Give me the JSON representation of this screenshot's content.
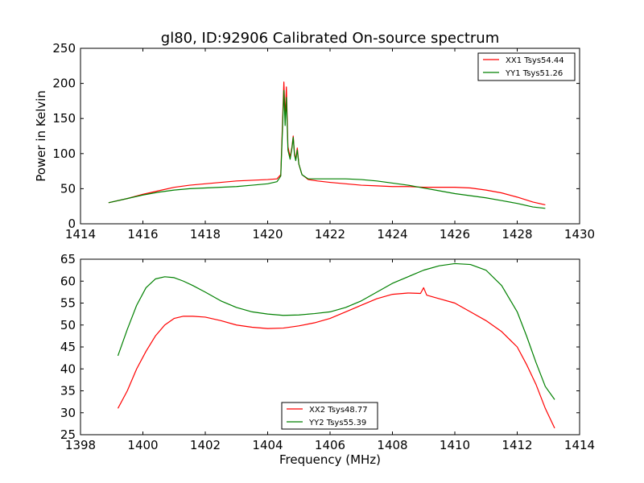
{
  "figure": {
    "title": "gl80, ID:92906 Calibrated On-source spectrum",
    "xlabel": "Frequency (MHz)",
    "colors": {
      "red": "#ff0000",
      "green": "#008000"
    }
  },
  "chart_data": [
    {
      "type": "line",
      "title": "gl80, ID:92906 Calibrated On-source spectrum",
      "xlabel": "",
      "ylabel": "Power in Kelvin",
      "xlim": [
        1414,
        1430
      ],
      "ylim": [
        0,
        250
      ],
      "xticks": [
        1414,
        1416,
        1418,
        1420,
        1422,
        1424,
        1426,
        1428,
        1430
      ],
      "yticks": [
        0,
        50,
        100,
        150,
        200,
        250
      ],
      "grid": false,
      "legend_position": "top-right",
      "series": [
        {
          "name": "XX1 Tsys54.44",
          "color": "#ff0000",
          "x": [
            1414.9,
            1415.5,
            1416.0,
            1416.5,
            1417.0,
            1417.5,
            1418.0,
            1418.5,
            1419.0,
            1419.5,
            1420.0,
            1420.3,
            1420.42,
            1420.48,
            1420.52,
            1420.56,
            1420.6,
            1420.65,
            1420.72,
            1420.78,
            1420.82,
            1420.86,
            1420.9,
            1420.95,
            1421.0,
            1421.1,
            1421.3,
            1421.6,
            1422.0,
            1422.5,
            1423.0,
            1423.5,
            1424.0,
            1424.5,
            1425.0,
            1425.5,
            1426.0,
            1426.5,
            1427.0,
            1427.5,
            1428.0,
            1428.5,
            1428.9
          ],
          "y": [
            30,
            36,
            42,
            47,
            52,
            55,
            57,
            59,
            61,
            62,
            63,
            64,
            70,
            150,
            202,
            150,
            195,
            110,
            95,
            110,
            125,
            100,
            92,
            108,
            85,
            70,
            63,
            61,
            59,
            57,
            55,
            54,
            53,
            53,
            52,
            52,
            52,
            51,
            48,
            44,
            38,
            31,
            27
          ]
        },
        {
          "name": "YY1 Tsys51.26",
          "color": "#008000",
          "x": [
            1414.9,
            1415.5,
            1416.0,
            1416.5,
            1417.0,
            1417.5,
            1418.0,
            1418.5,
            1419.0,
            1419.5,
            1420.0,
            1420.3,
            1420.42,
            1420.48,
            1420.52,
            1420.56,
            1420.6,
            1420.65,
            1420.72,
            1420.78,
            1420.82,
            1420.86,
            1420.9,
            1420.95,
            1421.0,
            1421.1,
            1421.3,
            1421.6,
            1422.0,
            1422.5,
            1423.0,
            1423.5,
            1424.0,
            1424.5,
            1425.0,
            1425.5,
            1426.0,
            1426.5,
            1427.0,
            1427.5,
            1428.0,
            1428.5,
            1428.9
          ],
          "y": [
            30,
            36,
            41,
            45,
            48,
            50,
            51,
            52,
            53,
            55,
            57,
            60,
            68,
            140,
            190,
            140,
            180,
            105,
            92,
            108,
            123,
            98,
            90,
            105,
            85,
            70,
            64,
            64,
            64,
            64,
            63,
            61,
            58,
            55,
            51,
            47,
            43,
            40,
            37,
            33,
            29,
            24,
            22
          ]
        }
      ]
    },
    {
      "type": "line",
      "title": "",
      "xlabel": "Frequency (MHz)",
      "ylabel": "",
      "xlim": [
        1398,
        1414
      ],
      "ylim": [
        25,
        65
      ],
      "xticks": [
        1398,
        1400,
        1402,
        1404,
        1406,
        1408,
        1410,
        1412,
        1414
      ],
      "yticks": [
        25,
        30,
        35,
        40,
        45,
        50,
        55,
        60,
        65
      ],
      "grid": false,
      "legend_position": "bottom-center",
      "series": [
        {
          "name": "XX2 Tsys48.77",
          "color": "#ff0000",
          "x": [
            1399.2,
            1399.5,
            1399.8,
            1400.1,
            1400.4,
            1400.7,
            1401.0,
            1401.3,
            1401.6,
            1402.0,
            1402.5,
            1403.0,
            1403.5,
            1404.0,
            1404.5,
            1405.0,
            1405.5,
            1406.0,
            1406.5,
            1407.0,
            1407.5,
            1408.0,
            1408.5,
            1408.9,
            1409.0,
            1409.1,
            1409.5,
            1410.0,
            1410.5,
            1411.0,
            1411.5,
            1412.0,
            1412.3,
            1412.6,
            1412.9,
            1413.2
          ],
          "y": [
            31,
            35,
            40,
            44,
            47.5,
            50,
            51.5,
            52,
            52,
            51.8,
            51,
            50,
            49.5,
            49.2,
            49.3,
            49.8,
            50.5,
            51.5,
            53,
            54.5,
            56,
            57,
            57.3,
            57.2,
            58.5,
            56.8,
            56,
            55,
            53,
            51,
            48.5,
            45,
            41,
            36.5,
            31,
            26.5
          ]
        },
        {
          "name": "YY2 Tsys55.39",
          "color": "#008000",
          "x": [
            1399.2,
            1399.5,
            1399.8,
            1400.1,
            1400.4,
            1400.7,
            1401.0,
            1401.3,
            1401.6,
            1402.0,
            1402.5,
            1403.0,
            1403.5,
            1404.0,
            1404.5,
            1405.0,
            1405.5,
            1406.0,
            1406.5,
            1407.0,
            1407.5,
            1408.0,
            1408.5,
            1409.0,
            1409.5,
            1410.0,
            1410.5,
            1411.0,
            1411.5,
            1412.0,
            1412.3,
            1412.6,
            1412.9,
            1413.2
          ],
          "y": [
            43,
            49,
            54.5,
            58.5,
            60.5,
            61,
            60.8,
            60,
            59,
            57.5,
            55.5,
            54,
            53,
            52.5,
            52.2,
            52.3,
            52.6,
            53,
            54,
            55.5,
            57.5,
            59.5,
            61,
            62.5,
            63.5,
            64,
            63.8,
            62.5,
            59,
            53,
            47.5,
            41.5,
            36,
            33
          ]
        }
      ]
    }
  ]
}
